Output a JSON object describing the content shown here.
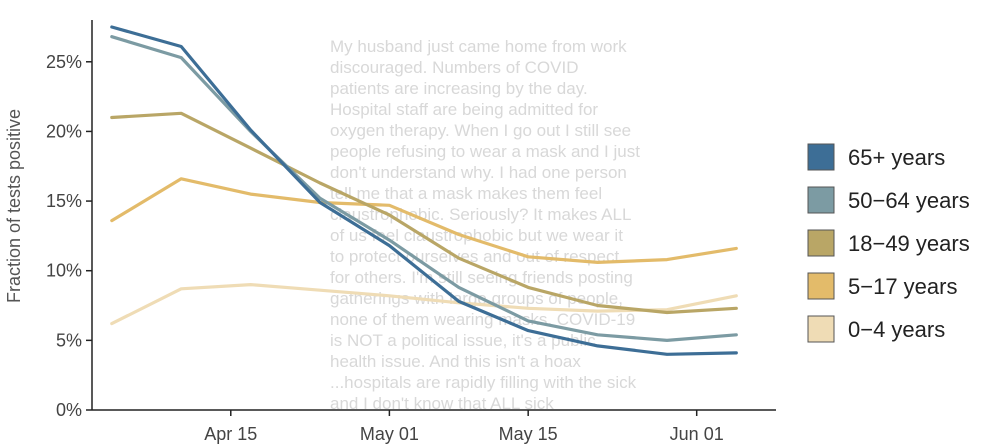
{
  "chart_data": {
    "type": "line",
    "title": "",
    "xlabel": "",
    "ylabel": "Fraction of tests positive",
    "ylim": [
      0,
      0.28
    ],
    "xlim": [
      "2020-04-01",
      "2020-06-09"
    ],
    "x": [
      "2020-04-03",
      "2020-04-10",
      "2020-04-17",
      "2020-04-24",
      "2020-05-01",
      "2020-05-08",
      "2020-05-15",
      "2020-05-22",
      "2020-05-29",
      "2020-06-05"
    ],
    "x_ticks": [
      {
        "date": "2020-04-15",
        "label": "Apr 15"
      },
      {
        "date": "2020-05-01",
        "label": "May 01"
      },
      {
        "date": "2020-05-15",
        "label": "May 15"
      },
      {
        "date": "2020-06-01",
        "label": "Jun 01"
      }
    ],
    "y_ticks": [
      {
        "value": 0,
        "label": "0%"
      },
      {
        "value": 0.05,
        "label": "5%"
      },
      {
        "value": 0.1,
        "label": "10%"
      },
      {
        "value": 0.15,
        "label": "15%"
      },
      {
        "value": 0.2,
        "label": "20%"
      },
      {
        "value": 0.25,
        "label": "25%"
      }
    ],
    "grid": false,
    "legend_position": "right",
    "series": [
      {
        "name": "65+ years",
        "color": "#3d6e96",
        "values": [
          0.275,
          0.261,
          0.201,
          0.149,
          0.118,
          0.078,
          0.057,
          0.046,
          0.04,
          0.041
        ]
      },
      {
        "name": "50−64 years",
        "color": "#7c9ba3",
        "values": [
          0.268,
          0.253,
          0.2,
          0.152,
          0.122,
          0.088,
          0.064,
          0.054,
          0.05,
          0.054
        ]
      },
      {
        "name": "18−49 years",
        "color": "#b9a666",
        "values": [
          0.21,
          0.213,
          0.188,
          0.163,
          0.14,
          0.109,
          0.088,
          0.075,
          0.07,
          0.073
        ]
      },
      {
        "name": "5−17 years",
        "color": "#e3bb6a",
        "values": [
          0.136,
          0.166,
          0.155,
          0.149,
          0.147,
          0.126,
          0.11,
          0.106,
          0.108,
          0.116
        ]
      },
      {
        "name": "0−4 years",
        "color": "#efdcb5",
        "values": [
          0.062,
          0.087,
          0.09,
          0.086,
          0.082,
          0.077,
          0.073,
          0.071,
          0.072,
          0.082
        ]
      }
    ]
  },
  "overlay_text": [
    "My husband just came home from work",
    "discouraged. Numbers of COVID",
    "patients are increasing by the day.",
    "Hospital staff are being admitted for",
    "oxygen therapy. When I go out I still see",
    "people refusing to wear a mask and I just",
    "don't understand why. I had one person",
    "tell me that a mask makes them feel",
    "claustrophobic. Seriously? It makes ALL",
    "of us feel claustrophobic but we wear it",
    "to protect ourselves and out of respect",
    "for others. I'm still seeing friends posting",
    "gatherings with large groups of people,",
    "none of them wearing masks. COVID-19",
    "is NOT a political issue, it's a public",
    "health issue. And this isn't a hoax",
    "...hospitals are rapidly filling with the sick",
    "and I don't know that ALL sick"
  ]
}
